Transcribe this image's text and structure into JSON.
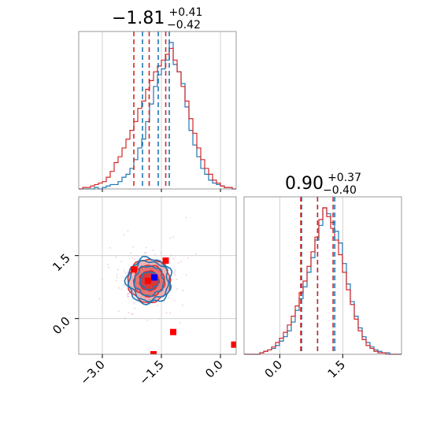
{
  "chart_data": {
    "type": "corner",
    "grid": true,
    "colors": {
      "blue": "#1f77b4",
      "red": "#d62728",
      "red_fill": "#e88a8a",
      "marker_blue": "#0000ff",
      "marker_red": "#ff0000"
    },
    "param0": {
      "range": [
        -3.6,
        0.4
      ],
      "ticks": [
        -3.0,
        -1.5,
        0.0
      ],
      "tick_labels": [
        "−3.0",
        "−1.5",
        "0.0"
      ],
      "title": {
        "value": "−1.81",
        "plus": "+0.41",
        "minus": "−0.42"
      },
      "hist_blue": [
        0,
        0,
        0,
        0,
        1,
        0,
        1,
        2,
        3,
        3,
        5,
        8,
        10,
        14,
        20,
        28,
        34,
        46,
        58,
        70,
        78,
        82,
        88,
        100,
        85,
        80,
        72,
        56,
        40,
        30,
        22,
        14,
        10,
        6,
        4,
        3,
        2,
        1,
        1,
        0
      ],
      "hist_red": [
        0,
        1,
        1,
        2,
        3,
        4,
        5,
        8,
        12,
        18,
        22,
        28,
        34,
        40,
        46,
        55,
        60,
        68,
        74,
        80,
        84,
        88,
        92,
        96,
        88,
        80,
        70,
        60,
        48,
        38,
        28,
        20,
        14,
        10,
        6,
        4,
        2,
        1,
        1,
        0
      ],
      "quantiles_blue": [
        -1.98,
        -1.58,
        -1.3
      ],
      "quantiles_red": [
        -2.2,
        -1.81,
        -1.39
      ]
    },
    "param1": {
      "range": [
        -0.85,
        2.9
      ],
      "ticks": [
        0.0,
        1.5
      ],
      "tick_labels": [
        "0.0",
        "1.5"
      ],
      "title": {
        "value": "0.90",
        "plus": "+0.37",
        "minus": "−0.40"
      },
      "hist_blue": [
        0,
        0,
        0,
        0,
        1,
        2,
        3,
        4,
        6,
        9,
        12,
        16,
        22,
        30,
        38,
        46,
        56,
        66,
        78,
        88,
        100,
        96,
        90,
        84,
        76,
        62,
        48,
        36,
        26,
        18,
        12,
        8,
        5,
        3,
        2,
        1,
        1,
        0,
        0,
        0
      ],
      "hist_red": [
        0,
        0,
        0,
        0,
        1,
        2,
        3,
        5,
        8,
        11,
        15,
        20,
        26,
        33,
        42,
        50,
        60,
        70,
        80,
        92,
        100,
        94,
        86,
        78,
        68,
        56,
        44,
        34,
        24,
        16,
        10,
        6,
        4,
        2,
        1,
        1,
        0,
        0,
        0,
        0
      ],
      "quantiles_blue": [
        0.52,
        0.9,
        1.31
      ],
      "quantiles_red": [
        0.5,
        0.9,
        1.27
      ]
    },
    "joint": {
      "center": [
        -1.81,
        0.9
      ],
      "sigma": [
        0.41,
        0.39
      ],
      "red_levels": [
        1.0,
        1.6,
        2.2
      ],
      "blue_levels": [
        0.9,
        1.5,
        2.0,
        2.3
      ],
      "blue_marker": [
        -1.68,
        0.98
      ],
      "red_markers": [
        [
          -2.2,
          1.17
        ],
        [
          -1.84,
          0.9
        ],
        [
          -1.39,
          1.38
        ],
        [
          -1.2,
          -0.32
        ],
        [
          -1.7,
          -0.85
        ],
        [
          0.35,
          -0.62
        ]
      ]
    }
  }
}
